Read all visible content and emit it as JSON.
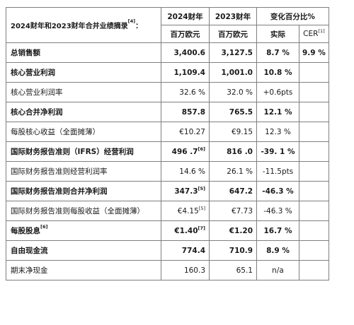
{
  "header": {
    "title": "2024财年和2023财年合并业绩摘录",
    "title_note": "[4]",
    "title_suffix": "：",
    "col_2024": "2024财年",
    "col_2023": "2023财年",
    "col_change": "变化百分比%",
    "unit_2024": "百万欧元",
    "unit_2023": "百万欧元",
    "unit_actual": "实际",
    "unit_cer": "CER",
    "unit_cer_note": "[1]"
  },
  "rows": [
    {
      "label": "总销售额",
      "label_note": "",
      "v2024": "3,400.6",
      "v2024_note": "",
      "v2023": "3,127.5",
      "v2023_note": "",
      "actual": "8.7 %",
      "cer": "9.9 %",
      "bold": true
    },
    {
      "label": "核心营业利润",
      "label_note": "",
      "v2024": "1,109.4",
      "v2024_note": "",
      "v2023": "1,001.0",
      "v2023_note": "",
      "actual": "10.8 %",
      "cer": "",
      "bold": true
    },
    {
      "label": "核心营业利润率",
      "label_note": "",
      "v2024": "32.6 %",
      "v2024_note": "",
      "v2023": "32.0 %",
      "v2023_note": "",
      "actual": "+0.6pts",
      "cer": "",
      "bold": false
    },
    {
      "label": "核心合并净利润",
      "label_note": "",
      "v2024": "857.8",
      "v2024_note": "",
      "v2023": "765.5",
      "v2023_note": "",
      "actual": "12.1 %",
      "cer": "",
      "bold": true
    },
    {
      "label": "每股核心收益（全面摊薄）",
      "label_note": "",
      "v2024": "€10.27",
      "v2024_note": "",
      "v2023": "€9.15",
      "v2023_note": "",
      "actual": "12.3 %",
      "cer": "",
      "bold": false
    },
    {
      "label": "国际财务报告准则（IFRS）经营利润",
      "label_note": "",
      "v2024": "496 .7",
      "v2024_note": "[6]",
      "v2023": "816 .0",
      "v2023_note": "",
      "actual": "-39. 1 %",
      "cer": "",
      "bold": true
    },
    {
      "label": "国际财务报告准则经营利润率",
      "label_note": "",
      "v2024": "14.6 %",
      "v2024_note": "",
      "v2023": "26.1 %",
      "v2023_note": "",
      "actual": "-11.5pts",
      "cer": "",
      "bold": false
    },
    {
      "label": "国际财务报告准则合并净利润",
      "label_note": "",
      "v2024": "347.3",
      "v2024_note": "[5]",
      "v2023": "647.2",
      "v2023_note": "",
      "actual": "-46.3 %",
      "cer": "",
      "bold": true
    },
    {
      "label": "国际财务报告准则每股收益（全面摊薄）",
      "label_note": "",
      "v2024": "€4.15",
      "v2024_note": "[5]",
      "v2023": "€7.73",
      "v2023_note": "",
      "actual": "-46.3 %",
      "cer": "",
      "bold": false
    },
    {
      "label": "每股股息",
      "label_note": "[6]",
      "v2024": "€1.40",
      "v2024_note": "[7]",
      "v2023": "€1.20",
      "v2023_note": "",
      "actual": "16.7 %",
      "cer": "",
      "bold": true
    },
    {
      "label": "自由现金流",
      "label_note": "",
      "v2024": "774.4",
      "v2024_note": "",
      "v2023": "710.9",
      "v2023_note": "",
      "actual": "8.9 %",
      "cer": "",
      "bold": true
    },
    {
      "label": "期末净现金",
      "label_note": "",
      "v2024": "160.3",
      "v2024_note": "",
      "v2023": "65.1",
      "v2023_note": "",
      "actual": "n/a",
      "cer": "",
      "bold": false
    }
  ]
}
